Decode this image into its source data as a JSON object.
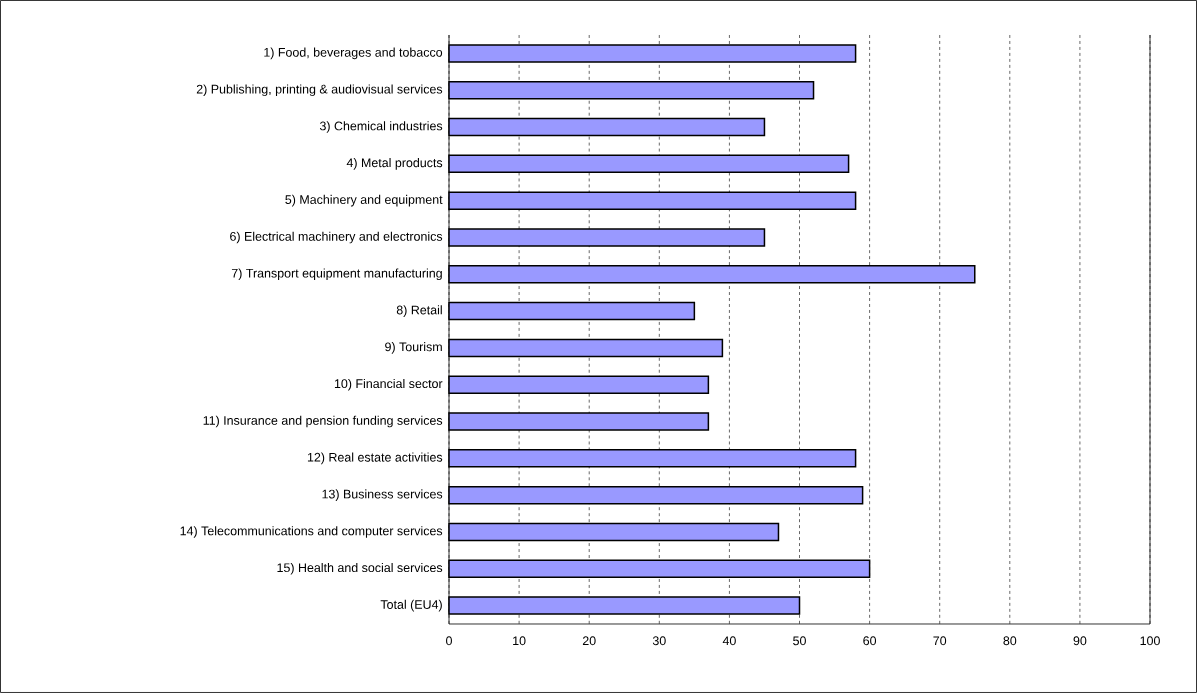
{
  "chart_data": {
    "type": "bar",
    "orientation": "horizontal",
    "categories": [
      "1) Food, beverages and tobacco",
      "2) Publishing, printing & audiovisual services",
      "3) Chemical industries",
      "4) Metal products",
      "5) Machinery and equipment",
      "6) Electrical machinery and electronics",
      "7) Transport equipment manufacturing",
      "8) Retail",
      "9) Tourism",
      "10) Financial sector",
      "11) Insurance and pension funding services",
      "12) Real estate activities",
      "13) Business services",
      "14) Telecommunications and computer services",
      "15) Health and social services",
      "Total (EU4)"
    ],
    "values": [
      58,
      52,
      45,
      57,
      58,
      45,
      75,
      35,
      39,
      37,
      37,
      58,
      59,
      47,
      60,
      50
    ],
    "color": "#9999ff",
    "xlim": [
      0,
      100
    ],
    "xticks": [
      0,
      10,
      20,
      30,
      40,
      50,
      60,
      70,
      80,
      90,
      100
    ],
    "grid": "x"
  }
}
